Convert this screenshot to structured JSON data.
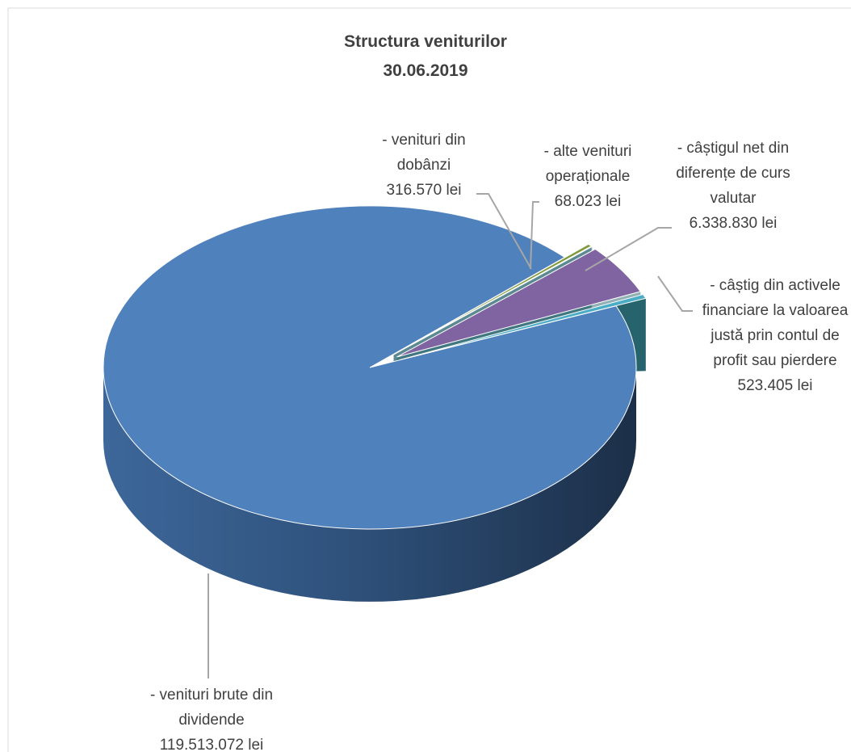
{
  "chart_data": {
    "type": "pie3d",
    "title": "Structura veniturilor",
    "subtitle": "30.06.2019",
    "categories": [
      "- venituri din dobânzi",
      "- alte venituri operaționale",
      "- câștigul net din diferențe de curs valutar",
      "- câștig din activele financiare la valoarea justă prin contul de profit sau pierdere",
      "- venituri brute din dividende"
    ],
    "values": [
      316570,
      68023,
      6338830,
      523405,
      119513072
    ],
    "value_labels": [
      "316.570 lei",
      "68.023 lei",
      "6.338.830 lei",
      "523.405 lei",
      "119.513.072 lei"
    ],
    "colors": [
      "#7f9a3a",
      "#c0504d",
      "#8064a2",
      "#4bacc6",
      "#4f81bd"
    ]
  }
}
